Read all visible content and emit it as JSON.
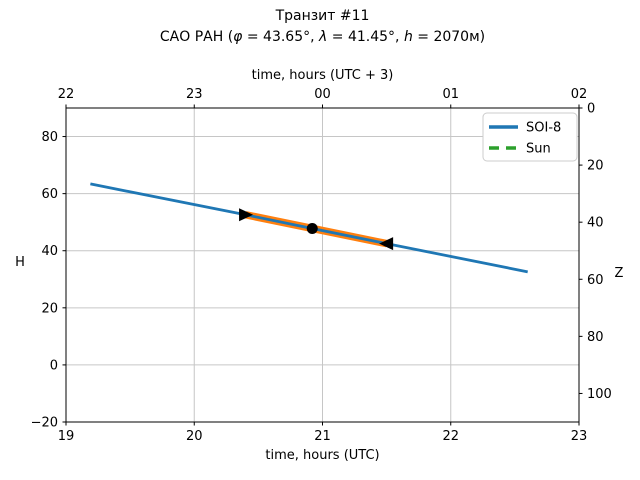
{
  "chart_data": {
    "type": "line",
    "title": "Транзит #11",
    "subtitle": "САО РАН (φ = 43.65°, λ = 41.45°, h = 2070м)",
    "subtitle_parts": {
      "prefix": "САО РАН (",
      "phi_symbol": "φ",
      "phi_eq": " = 43.65°, ",
      "lambda_symbol": "λ",
      "lambda_eq": " = 41.45°, ",
      "h_symbol": "h",
      "h_eq": " = 2070м)"
    },
    "grid": true,
    "axes": {
      "bottom": {
        "label": "time, hours (UTC)",
        "range": [
          19,
          23
        ],
        "ticks": [
          19,
          20,
          21,
          22,
          23
        ],
        "tick_labels": [
          "19",
          "20",
          "21",
          "22",
          "23"
        ]
      },
      "top": {
        "label": "time, hours (UTC + 3)",
        "ticks": [
          19,
          20,
          21,
          22,
          23
        ],
        "tick_labels": [
          "22",
          "23",
          "00",
          "01",
          "02"
        ]
      },
      "left": {
        "label": "H",
        "range": [
          -20,
          90
        ],
        "ticks": [
          -20,
          0,
          20,
          40,
          60,
          80
        ],
        "tick_labels": [
          "−20",
          "0",
          "20",
          "40",
          "60",
          "80"
        ]
      },
      "right": {
        "label": "Z",
        "tick_labels": [
          "0",
          "20",
          "40",
          "60",
          "80",
          "100"
        ],
        "tick_positions_H": [
          90,
          70,
          50,
          30,
          10,
          -10
        ]
      }
    },
    "legend": {
      "position": "upper right",
      "entries": [
        {
          "label": "SOI-8",
          "color": "#1f77b4",
          "style": "solid"
        },
        {
          "label": "Sun",
          "color": "#2ca02c",
          "style": "dashed"
        }
      ]
    },
    "series": [
      {
        "name": "transit-highlight",
        "color": "#ff7f0e",
        "line_width": 7.5,
        "x": [
          20.4,
          21.5
        ],
        "y": [
          52.6,
          42.5
        ]
      },
      {
        "name": "SOI-8",
        "color": "#1f77b4",
        "line_width": 2.8,
        "x": [
          19.19,
          20.4,
          20.92,
          21.5,
          22.6
        ],
        "y": [
          63.4,
          52.6,
          47.8,
          42.5,
          32.6
        ]
      }
    ],
    "markers": [
      {
        "shape": "triangle-right",
        "x": 20.4,
        "y": 52.6,
        "color": "#000000"
      },
      {
        "shape": "circle",
        "x": 20.92,
        "y": 47.8,
        "color": "#000000"
      },
      {
        "shape": "triangle-left",
        "x": 21.5,
        "y": 42.5,
        "color": "#000000"
      }
    ],
    "colors": {
      "grid": "#c6c6c6",
      "spine": "#000000",
      "background": "#ffffff",
      "legend_border": "#cccccc"
    }
  }
}
